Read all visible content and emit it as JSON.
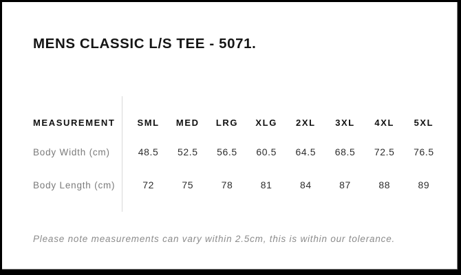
{
  "card": {
    "title": "MENS CLASSIC L/S TEE - 5071.",
    "note": "Please note measurements can vary within 2.5cm, this is within our tolerance."
  },
  "table": {
    "columns": [
      "MEASUREMENT",
      "SML",
      "MED",
      "LRG",
      "XLG",
      "2XL",
      "3XL",
      "4XL",
      "5XL"
    ],
    "rows": [
      {
        "label": "Body Width (cm)",
        "values": [
          "48.5",
          "52.5",
          "56.5",
          "60.5",
          "64.5",
          "68.5",
          "72.5",
          "76.5"
        ]
      },
      {
        "label": "Body Length (cm)",
        "values": [
          "72",
          "75",
          "78",
          "81",
          "84",
          "87",
          "88",
          "89"
        ]
      }
    ]
  },
  "colors": {
    "background": "#000000",
    "card": "#ffffff",
    "title": "#151515",
    "column_header": "#101010",
    "row_label": "#7b7b7b",
    "value": "#2d2d2d",
    "note": "#8b8b8b",
    "divider": "#d8d8d8"
  }
}
